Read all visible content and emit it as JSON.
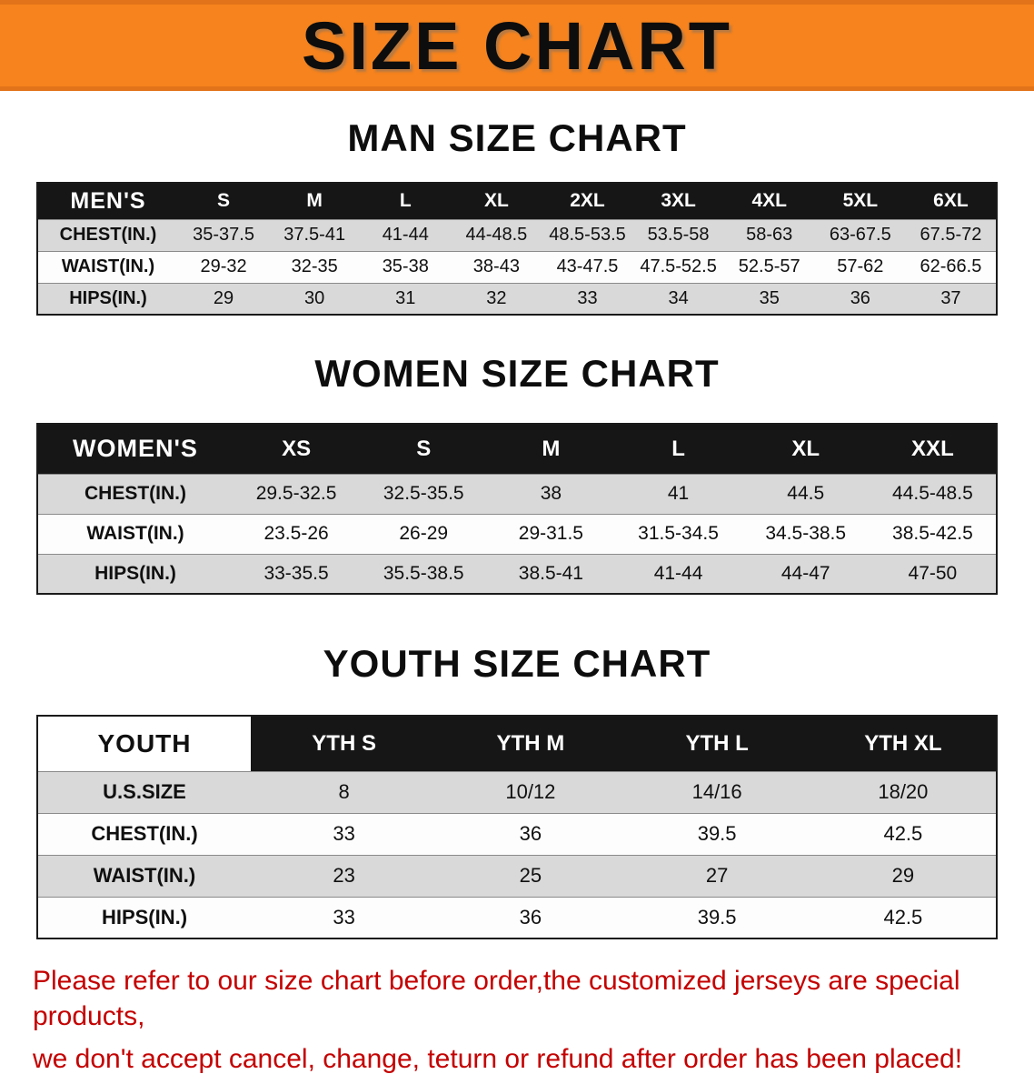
{
  "banner": {
    "title": "SIZE CHART"
  },
  "colors": {
    "banner_bg": "#f6831d",
    "banner_edge": "#e2731a",
    "ink": "#0d0d0d",
    "table_header_bg": "#161616",
    "row_stripe": "#d9d9d9",
    "disclaimer_red": "#c40000"
  },
  "sections": [
    {
      "heading": "MAN SIZE CHART",
      "table": {
        "header": [
          "MEN'S",
          "S",
          "M",
          "L",
          "XL",
          "2XL",
          "3XL",
          "4XL",
          "5XL",
          "6XL"
        ],
        "rows": [
          [
            "CHEST(IN.)",
            "35-37.5",
            "37.5-41",
            "41-44",
            "44-48.5",
            "48.5-53.5",
            "53.5-58",
            "58-63",
            "63-67.5",
            "67.5-72"
          ],
          [
            "WAIST(IN.)",
            "29-32",
            "32-35",
            "35-38",
            "38-43",
            "43-47.5",
            "47.5-52.5",
            "52.5-57",
            "57-62",
            "62-66.5"
          ],
          [
            "HIPS(IN.)",
            "29",
            "30",
            "31",
            "32",
            "33",
            "34",
            "35",
            "36",
            "37"
          ]
        ]
      }
    },
    {
      "heading": "WOMEN SIZE CHART",
      "table": {
        "header": [
          "WOMEN'S",
          "XS",
          "S",
          "M",
          "L",
          "XL",
          "XXL"
        ],
        "rows": [
          [
            "CHEST(IN.)",
            "29.5-32.5",
            "32.5-35.5",
            "38",
            "41",
            "44.5",
            "44.5-48.5"
          ],
          [
            "WAIST(IN.)",
            "23.5-26",
            "26-29",
            "29-31.5",
            "31.5-34.5",
            "34.5-38.5",
            "38.5-42.5"
          ],
          [
            "HIPS(IN.)",
            "33-35.5",
            "35.5-38.5",
            "38.5-41",
            "41-44",
            "44-47",
            "47-50"
          ]
        ]
      }
    },
    {
      "heading": "YOUTH SIZE CHART",
      "table": {
        "header": [
          "YOUTH",
          "YTH S",
          "YTH M",
          "YTH L",
          "YTH XL"
        ],
        "rows": [
          [
            "U.S.SIZE",
            "8",
            "10/12",
            "14/16",
            "18/20"
          ],
          [
            "CHEST(IN.)",
            "33",
            "36",
            "39.5",
            "42.5"
          ],
          [
            "WAIST(IN.)",
            "23",
            "25",
            "27",
            "29"
          ],
          [
            "HIPS(IN.)",
            "33",
            "36",
            "39.5",
            "42.5"
          ]
        ]
      }
    }
  ],
  "disclaimer": {
    "line1": "Please refer to our size chart before order,the customized jerseys are special products,",
    "line2": "we don't accept cancel, change, teturn or refund after order has been placed!"
  }
}
